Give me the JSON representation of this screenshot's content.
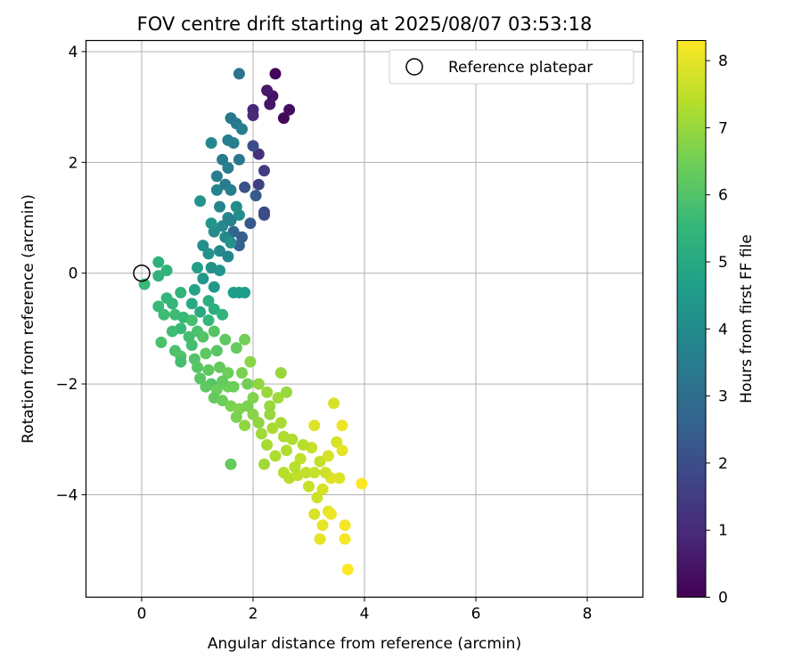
{
  "chart_data": {
    "type": "scatter",
    "title": "FOV centre drift starting at 2025/08/07 03:53:18",
    "xlabel": "Angular distance from reference (arcmin)",
    "ylabel": "Rotation from reference (arcmin)",
    "xlim": [
      -1,
      9
    ],
    "ylim": [
      -5.85,
      4.2
    ],
    "xticks": [
      "0",
      "2",
      "4",
      "6",
      "8"
    ],
    "yticks": [
      "−4",
      "−2",
      "0",
      "2",
      "4"
    ],
    "grid": true,
    "legend": {
      "position": "top-right",
      "entries": [
        "Reference platepar"
      ]
    },
    "reference_point": {
      "x": 0,
      "y": 0
    },
    "colorbar": {
      "label": "Hours from first FF file",
      "range": [
        0,
        8.3
      ],
      "ticks": [
        "0",
        "1",
        "2",
        "3",
        "4",
        "5",
        "6",
        "7",
        "8"
      ],
      "colormap": "viridis",
      "stops": [
        "#440154",
        "#482878",
        "#3e4989",
        "#31688e",
        "#26828e",
        "#1f9e89",
        "#35b779",
        "#6ece58",
        "#b5de2b",
        "#fde725"
      ]
    },
    "points": [
      {
        "x": 2.4,
        "y": 3.6,
        "t": 0.1
      },
      {
        "x": 2.55,
        "y": 2.8,
        "t": 0.2
      },
      {
        "x": 2.65,
        "y": 2.95,
        "t": 0.3
      },
      {
        "x": 2.35,
        "y": 3.2,
        "t": 0.4
      },
      {
        "x": 2.3,
        "y": 3.05,
        "t": 0.5
      },
      {
        "x": 2.25,
        "y": 3.3,
        "t": 0.6
      },
      {
        "x": 2.0,
        "y": 2.95,
        "t": 0.9
      },
      {
        "x": 2.0,
        "y": 2.85,
        "t": 1.0
      },
      {
        "x": 2.1,
        "y": 2.15,
        "t": 1.2
      },
      {
        "x": 2.2,
        "y": 1.85,
        "t": 1.5
      },
      {
        "x": 2.1,
        "y": 1.6,
        "t": 1.6
      },
      {
        "x": 2.2,
        "y": 1.1,
        "t": 1.8
      },
      {
        "x": 2.2,
        "y": 1.05,
        "t": 1.9
      },
      {
        "x": 2.0,
        "y": 2.3,
        "t": 2.0
      },
      {
        "x": 1.85,
        "y": 1.55,
        "t": 2.1
      },
      {
        "x": 1.95,
        "y": 0.9,
        "t": 2.3
      },
      {
        "x": 2.05,
        "y": 1.4,
        "t": 2.4
      },
      {
        "x": 1.8,
        "y": 0.65,
        "t": 2.5
      },
      {
        "x": 1.75,
        "y": 0.5,
        "t": 2.6
      },
      {
        "x": 1.65,
        "y": 0.75,
        "t": 2.7
      },
      {
        "x": 1.75,
        "y": 3.6,
        "t": 3.2
      },
      {
        "x": 1.6,
        "y": 2.8,
        "t": 3.3
      },
      {
        "x": 1.7,
        "y": 2.7,
        "t": 3.4
      },
      {
        "x": 1.8,
        "y": 2.6,
        "t": 3.5
      },
      {
        "x": 1.55,
        "y": 2.4,
        "t": 3.5
      },
      {
        "x": 1.65,
        "y": 2.35,
        "t": 3.6
      },
      {
        "x": 1.75,
        "y": 2.05,
        "t": 3.3
      },
      {
        "x": 1.45,
        "y": 2.05,
        "t": 3.4
      },
      {
        "x": 1.55,
        "y": 1.9,
        "t": 3.5
      },
      {
        "x": 1.35,
        "y": 1.75,
        "t": 3.6
      },
      {
        "x": 1.5,
        "y": 1.6,
        "t": 3.4
      },
      {
        "x": 1.6,
        "y": 1.5,
        "t": 3.6
      },
      {
        "x": 1.25,
        "y": 2.35,
        "t": 3.8
      },
      {
        "x": 1.35,
        "y": 1.5,
        "t": 3.7
      },
      {
        "x": 1.4,
        "y": 1.2,
        "t": 3.8
      },
      {
        "x": 1.55,
        "y": 1.0,
        "t": 3.9
      },
      {
        "x": 1.45,
        "y": 0.85,
        "t": 3.9
      },
      {
        "x": 1.7,
        "y": 1.2,
        "t": 4.0
      },
      {
        "x": 1.75,
        "y": 1.05,
        "t": 4.1
      },
      {
        "x": 1.6,
        "y": 0.95,
        "t": 3.7
      },
      {
        "x": 1.5,
        "y": 0.65,
        "t": 3.9
      },
      {
        "x": 1.3,
        "y": 0.75,
        "t": 4.0
      },
      {
        "x": 1.1,
        "y": 0.5,
        "t": 4.1
      },
      {
        "x": 1.2,
        "y": 0.35,
        "t": 4.2
      },
      {
        "x": 1.4,
        "y": 0.4,
        "t": 3.9
      },
      {
        "x": 1.55,
        "y": 0.3,
        "t": 3.8
      },
      {
        "x": 1.25,
        "y": 0.1,
        "t": 4.2
      },
      {
        "x": 1.4,
        "y": 0.05,
        "t": 4.3
      },
      {
        "x": 1.1,
        "y": -0.1,
        "t": 4.4
      },
      {
        "x": 1.3,
        "y": -0.25,
        "t": 4.4
      },
      {
        "x": 1.05,
        "y": 1.3,
        "t": 4.3
      },
      {
        "x": 1.25,
        "y": 0.9,
        "t": 4.3
      },
      {
        "x": 1.6,
        "y": 0.55,
        "t": 4.2
      },
      {
        "x": 1.75,
        "y": -0.35,
        "t": 4.5
      },
      {
        "x": 1.85,
        "y": -0.35,
        "t": 4.6
      },
      {
        "x": 1.65,
        "y": -0.35,
        "t": 4.6
      },
      {
        "x": 1.0,
        "y": 0.1,
        "t": 4.7
      },
      {
        "x": 0.95,
        "y": -0.3,
        "t": 4.8
      },
      {
        "x": 0.9,
        "y": -0.55,
        "t": 5.0
      },
      {
        "x": 1.05,
        "y": -0.7,
        "t": 5.0
      },
      {
        "x": 1.2,
        "y": -0.5,
        "t": 5.2
      },
      {
        "x": 1.3,
        "y": -0.65,
        "t": 5.2
      },
      {
        "x": 1.45,
        "y": -0.75,
        "t": 5.4
      },
      {
        "x": 1.2,
        "y": -0.85,
        "t": 5.5
      },
      {
        "x": 0.7,
        "y": -0.35,
        "t": 5.4
      },
      {
        "x": 0.55,
        "y": -0.55,
        "t": 5.5
      },
      {
        "x": 0.45,
        "y": -0.45,
        "t": 5.5
      },
      {
        "x": 0.3,
        "y": 0.2,
        "t": 5.3
      },
      {
        "x": 0.45,
        "y": 0.05,
        "t": 5.4
      },
      {
        "x": 0.3,
        "y": -0.05,
        "t": 5.4
      },
      {
        "x": 0.05,
        "y": -0.2,
        "t": 5.6
      },
      {
        "x": 0.3,
        "y": -0.6,
        "t": 5.6
      },
      {
        "x": 0.4,
        "y": -0.75,
        "t": 5.7
      },
      {
        "x": 0.6,
        "y": -0.75,
        "t": 5.7
      },
      {
        "x": 0.75,
        "y": -0.8,
        "t": 5.6
      },
      {
        "x": 0.9,
        "y": -0.85,
        "t": 5.8
      },
      {
        "x": 0.7,
        "y": -1.0,
        "t": 5.6
      },
      {
        "x": 0.85,
        "y": -1.15,
        "t": 5.8
      },
      {
        "x": 0.55,
        "y": -1.05,
        "t": 5.7
      },
      {
        "x": 0.35,
        "y": -1.25,
        "t": 5.9
      },
      {
        "x": 0.6,
        "y": -1.4,
        "t": 5.9
      },
      {
        "x": 0.7,
        "y": -1.5,
        "t": 6.0
      },
      {
        "x": 0.9,
        "y": -1.3,
        "t": 5.8
      },
      {
        "x": 1.0,
        "y": -1.05,
        "t": 5.9
      },
      {
        "x": 1.1,
        "y": -1.15,
        "t": 6.0
      },
      {
        "x": 1.3,
        "y": -1.05,
        "t": 6.1
      },
      {
        "x": 1.5,
        "y": -1.2,
        "t": 6.2
      },
      {
        "x": 1.7,
        "y": -1.35,
        "t": 6.3
      },
      {
        "x": 1.85,
        "y": -1.2,
        "t": 6.5
      },
      {
        "x": 1.35,
        "y": -1.4,
        "t": 6.1
      },
      {
        "x": 1.15,
        "y": -1.45,
        "t": 6.2
      },
      {
        "x": 0.95,
        "y": -1.55,
        "t": 6.0
      },
      {
        "x": 0.7,
        "y": -1.6,
        "t": 5.8
      },
      {
        "x": 1.0,
        "y": -1.7,
        "t": 6.1
      },
      {
        "x": 1.2,
        "y": -1.75,
        "t": 6.2
      },
      {
        "x": 1.4,
        "y": -1.7,
        "t": 6.3
      },
      {
        "x": 1.55,
        "y": -1.8,
        "t": 6.4
      },
      {
        "x": 1.05,
        "y": -1.9,
        "t": 6.1
      },
      {
        "x": 1.25,
        "y": -2.0,
        "t": 6.0
      },
      {
        "x": 1.15,
        "y": -2.05,
        "t": 6.2
      },
      {
        "x": 1.35,
        "y": -2.1,
        "t": 6.4
      },
      {
        "x": 1.55,
        "y": -2.05,
        "t": 6.5
      },
      {
        "x": 1.3,
        "y": -2.25,
        "t": 6.3
      },
      {
        "x": 1.45,
        "y": -2.3,
        "t": 6.4
      },
      {
        "x": 1.6,
        "y": -2.4,
        "t": 6.6
      },
      {
        "x": 1.75,
        "y": -2.45,
        "t": 6.7
      },
      {
        "x": 1.9,
        "y": -2.4,
        "t": 6.6
      },
      {
        "x": 1.7,
        "y": -2.6,
        "t": 6.6
      },
      {
        "x": 1.85,
        "y": -2.75,
        "t": 6.9
      },
      {
        "x": 2.0,
        "y": -2.55,
        "t": 6.8
      },
      {
        "x": 2.1,
        "y": -2.7,
        "t": 6.9
      },
      {
        "x": 1.95,
        "y": -1.6,
        "t": 6.8
      },
      {
        "x": 1.8,
        "y": -1.8,
        "t": 6.6
      },
      {
        "x": 1.65,
        "y": -2.05,
        "t": 6.4
      },
      {
        "x": 2.1,
        "y": -2.0,
        "t": 6.9
      },
      {
        "x": 2.25,
        "y": -2.15,
        "t": 7.0
      },
      {
        "x": 2.3,
        "y": -2.4,
        "t": 7.0
      },
      {
        "x": 2.45,
        "y": -2.25,
        "t": 7.1
      },
      {
        "x": 2.6,
        "y": -2.15,
        "t": 7.0
      },
      {
        "x": 2.5,
        "y": -1.8,
        "t": 7.0
      },
      {
        "x": 2.15,
        "y": -2.9,
        "t": 7.1
      },
      {
        "x": 2.25,
        "y": -3.1,
        "t": 7.2
      },
      {
        "x": 2.35,
        "y": -2.8,
        "t": 7.2
      },
      {
        "x": 2.5,
        "y": -2.7,
        "t": 7.2
      },
      {
        "x": 2.55,
        "y": -2.95,
        "t": 7.3
      },
      {
        "x": 2.4,
        "y": -3.3,
        "t": 7.3
      },
      {
        "x": 2.6,
        "y": -3.2,
        "t": 7.3
      },
      {
        "x": 2.2,
        "y": -3.45,
        "t": 7.1
      },
      {
        "x": 2.55,
        "y": -3.6,
        "t": 7.4
      },
      {
        "x": 2.65,
        "y": -3.7,
        "t": 7.4
      },
      {
        "x": 2.8,
        "y": -3.65,
        "t": 7.5
      },
      {
        "x": 2.95,
        "y": -3.6,
        "t": 7.5
      },
      {
        "x": 2.85,
        "y": -3.35,
        "t": 7.5
      },
      {
        "x": 3.05,
        "y": -3.15,
        "t": 7.6
      },
      {
        "x": 3.2,
        "y": -3.4,
        "t": 7.6
      },
      {
        "x": 3.0,
        "y": -3.85,
        "t": 7.6
      },
      {
        "x": 3.15,
        "y": -4.05,
        "t": 7.7
      },
      {
        "x": 3.25,
        "y": -3.9,
        "t": 7.8
      },
      {
        "x": 3.4,
        "y": -3.7,
        "t": 7.9
      },
      {
        "x": 3.55,
        "y": -3.7,
        "t": 7.9
      },
      {
        "x": 3.35,
        "y": -3.3,
        "t": 7.8
      },
      {
        "x": 3.5,
        "y": -3.05,
        "t": 7.8
      },
      {
        "x": 3.45,
        "y": -2.35,
        "t": 7.8
      },
      {
        "x": 3.1,
        "y": -2.75,
        "t": 7.9
      },
      {
        "x": 3.6,
        "y": -2.75,
        "t": 8.1
      },
      {
        "x": 3.6,
        "y": -3.2,
        "t": 8.0
      },
      {
        "x": 3.35,
        "y": -4.3,
        "t": 8.0
      },
      {
        "x": 3.4,
        "y": -4.35,
        "t": 8.1
      },
      {
        "x": 3.1,
        "y": -4.35,
        "t": 7.8
      },
      {
        "x": 3.25,
        "y": -4.55,
        "t": 8.0
      },
      {
        "x": 3.2,
        "y": -4.8,
        "t": 8.0
      },
      {
        "x": 3.65,
        "y": -4.55,
        "t": 8.2
      },
      {
        "x": 3.65,
        "y": -4.8,
        "t": 8.2
      },
      {
        "x": 3.7,
        "y": -5.35,
        "t": 8.3
      },
      {
        "x": 3.95,
        "y": -3.8,
        "t": 8.3
      },
      {
        "x": 1.6,
        "y": -3.45,
        "t": 6.3
      },
      {
        "x": 2.3,
        "y": -2.55,
        "t": 7.0
      },
      {
        "x": 2.0,
        "y": -2.25,
        "t": 6.7
      },
      {
        "x": 1.9,
        "y": -2.0,
        "t": 6.5
      },
      {
        "x": 1.45,
        "y": -1.95,
        "t": 6.3
      },
      {
        "x": 2.7,
        "y": -3.0,
        "t": 7.3
      },
      {
        "x": 2.9,
        "y": -3.1,
        "t": 7.4
      },
      {
        "x": 2.75,
        "y": -3.5,
        "t": 7.4
      },
      {
        "x": 3.1,
        "y": -3.6,
        "t": 7.6
      },
      {
        "x": 3.3,
        "y": -3.6,
        "t": 7.7
      }
    ]
  }
}
